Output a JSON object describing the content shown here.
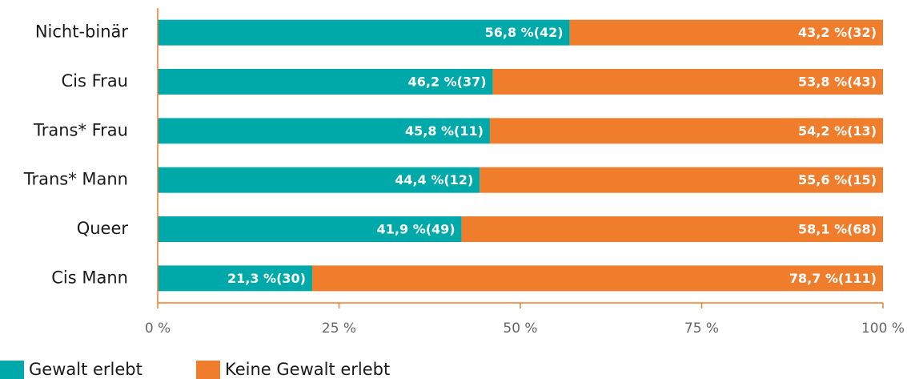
{
  "chart_data": {
    "type": "stacked_bar_horizontal",
    "categories": [
      "Nicht-binär",
      "Cis Frau",
      "Trans* Frau",
      "Trans* Mann",
      "Queer",
      "Cis Mann"
    ],
    "series": [
      {
        "name": "Gewalt erlebt",
        "color": "#00a9a9",
        "values": [
          56.8,
          46.2,
          45.8,
          44.4,
          41.9,
          21.3
        ],
        "value_labels": [
          "56,8 %(42)",
          "46,2 %(37)",
          "45,8 %(11)",
          "44,4 %(12)",
          "41,9 %(49)",
          "21,3 %(30)"
        ]
      },
      {
        "name": "Keine Gewalt erlebt",
        "color": "#f07d2c",
        "values": [
          43.2,
          53.8,
          54.2,
          55.6,
          58.1,
          78.7
        ],
        "value_labels": [
          "43,2 %(32)",
          "53,8 %(43)",
          "54,2 %(13)",
          "55,6 %(15)",
          "58,1 %(68)",
          "78,7 %(111)"
        ]
      }
    ],
    "xlim": [
      0,
      100
    ],
    "xticks": [
      {
        "value": 0,
        "label": "0 %"
      },
      {
        "value": 25,
        "label": "25 %"
      },
      {
        "value": 50,
        "label": "50 %"
      },
      {
        "value": 75,
        "label": "75 %"
      },
      {
        "value": 100,
        "label": "100 %"
      }
    ],
    "axis_color": "#f07d2c"
  }
}
